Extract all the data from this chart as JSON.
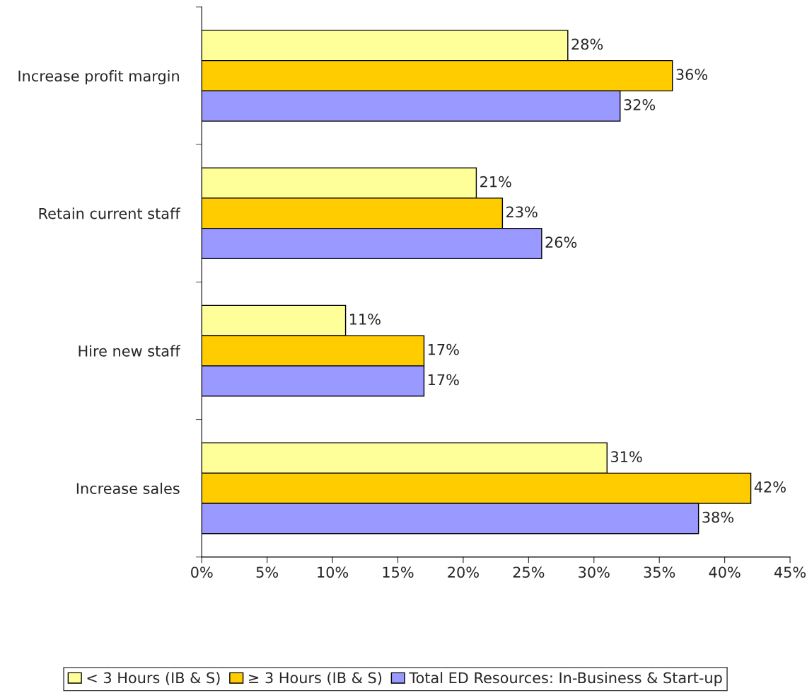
{
  "chart_data": {
    "type": "bar",
    "orientation": "horizontal",
    "categories": [
      "Increase profit margin",
      "Retain current staff",
      "Hire new staff",
      "Increase sales"
    ],
    "series": [
      {
        "name": "< 3 Hours (IB & S)",
        "color": "#ffff99",
        "values": [
          28,
          21,
          11,
          31
        ],
        "value_labels": [
          "28%",
          "21%",
          "11%",
          "31%"
        ]
      },
      {
        "name": "≥ 3 Hours (IB & S)",
        "color": "#ffcc00",
        "values": [
          36,
          23,
          17,
          42
        ],
        "value_labels": [
          "36%",
          "23%",
          "17%",
          "42%"
        ]
      },
      {
        "name": "Total ED Resources: In-Business & Start-up",
        "color": "#9999ff",
        "values": [
          32,
          26,
          17,
          38
        ],
        "value_labels": [
          "32%",
          "26%",
          "17%",
          "38%"
        ]
      }
    ],
    "xlim": [
      0,
      45
    ],
    "xticks": [
      {
        "value": 0,
        "label": "0%"
      },
      {
        "value": 5,
        "label": "5%"
      },
      {
        "value": 10,
        "label": "10%"
      },
      {
        "value": 15,
        "label": "15%"
      },
      {
        "value": 20,
        "label": "20%"
      },
      {
        "value": 25,
        "label": "25%"
      },
      {
        "value": 30,
        "label": "30%"
      },
      {
        "value": 35,
        "label": "35%"
      },
      {
        "value": 40,
        "label": "40%"
      },
      {
        "value": 45,
        "label": "45%"
      }
    ],
    "grid": false,
    "legend": "bottom"
  }
}
